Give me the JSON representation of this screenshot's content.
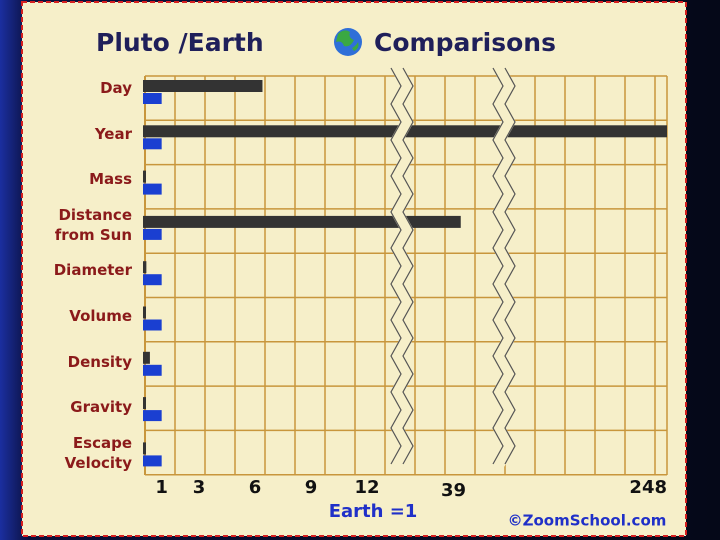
{
  "chart_data": {
    "type": "bar",
    "orientation": "horizontal",
    "title": [
      "Pluto /Earth",
      "Comparisons"
    ],
    "xlabel": "Earth =1",
    "annotations": [
      "©ZoomSchool.com"
    ],
    "categories": [
      "Day",
      "Year",
      "Mass",
      "Distance\nfrom Sun",
      "Diameter",
      "Volume",
      "Density",
      "Gravity",
      "Escape\nVelocity"
    ],
    "series": [
      {
        "color": "#333333",
        "values": [
          6.4,
          248,
          0.002,
          39.5,
          0.18,
          0.006,
          0.37,
          0.06,
          0.1
        ]
      },
      {
        "color": "#1a3fd1",
        "values": [
          1,
          1,
          1,
          1,
          1,
          1,
          1,
          1,
          1
        ]
      }
    ],
    "xlim": [
      0,
      248
    ],
    "x_breaks": [
      [
        13.5,
        36
      ],
      [
        42,
        230
      ]
    ],
    "xticks": [
      1,
      3,
      6,
      9,
      12,
      39,
      248
    ],
    "grid": true
  }
}
